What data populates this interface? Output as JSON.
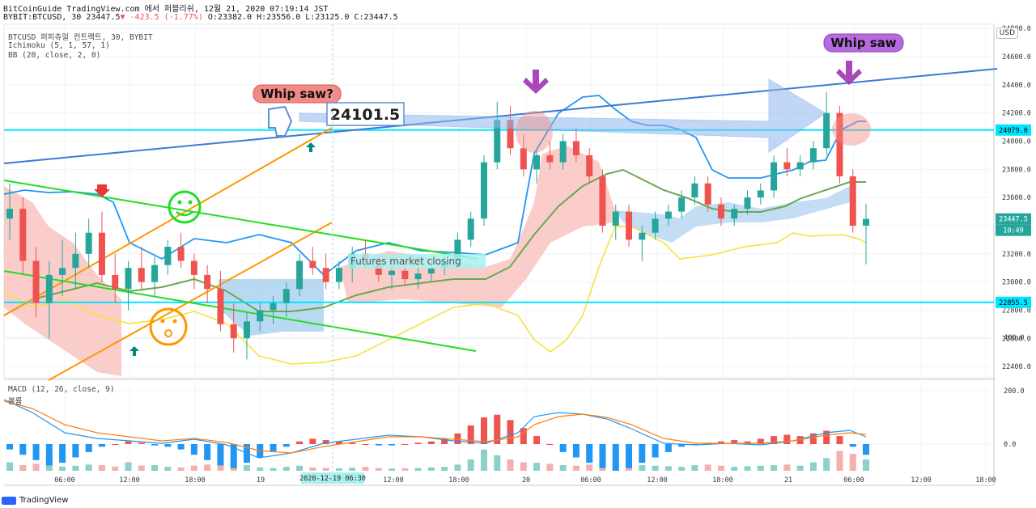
{
  "header": {
    "line1": "BitCoinGuide TradingView.com 에서 퍼블리쉬, 12월 21, 2020 07:19:14 JST",
    "line2_prefix": "BYBIT:BTCUSD, 30 23447.5",
    "change": "▼ -423.5 (-1.77%)",
    "ohlc": " O:23382.0 H:23556.0 L:23125.0 C:23447.5"
  },
  "indicators": {
    "symbol": "BTCUSD 퍼피츄얼 컨트랙트, 30, BYBIT",
    "ichimoku": "Ichimoku (5, 1, 57, 1)",
    "bb": "BB (20, close, 2, 0)",
    "macd": "MACD (12, 26, close, 9)",
    "volume": "볼륨"
  },
  "currency_button": "USD",
  "footer": {
    "brand": "TradingView"
  },
  "colors": {
    "up": "#26a69a",
    "down": "#ef5350",
    "bb_outer": "#2196f3",
    "bb_lower": "#ffeb3b",
    "basis": "#6aa84f",
    "kumo_green": "#a8cfef",
    "kumo_red": "#f8b8b4",
    "cyan_line": "#00e5ff",
    "trend_blue": "#3d7ad6",
    "orange_channel": "#ff9800",
    "green_trend": "#22dd22",
    "purple": "#b66ae0",
    "salmon": "#f28b86"
  },
  "chart_data": {
    "type": "candlestick",
    "symbol": "BTCUSD",
    "interval": "30",
    "x_tick_labels": [
      "06:00",
      "12:00",
      "18:00",
      "19",
      "12:00",
      "18:00",
      "20",
      "06:00",
      "12:00",
      "18:00",
      "21",
      "06:00",
      "12:00",
      "18:00"
    ],
    "y_tick_labels": [
      "22400.0",
      "22600.0",
      "22800.0",
      "23000.0",
      "23200.0",
      "23400.0",
      "23600.0",
      "23800.0",
      "24000.0",
      "24200.0",
      "24400.0",
      "24600.0",
      "24800.0"
    ],
    "ylim": [
      22320,
      24830
    ],
    "price_tags": [
      "24079.0",
      "23447.5",
      "22855.5"
    ],
    "countdown": "10:49",
    "horizontal_levels": [
      24079.0,
      22855.5
    ],
    "crosshair_label": "2020-12-19  06:30",
    "macd_y_tick_labels": [
      "400.0",
      "200.0",
      "0.0"
    ],
    "annotations": {
      "whip_saw_question": "Whip saw?",
      "whip_saw": "Whip saw",
      "price_box": "24101.5",
      "futures_note": "Futures market closing"
    },
    "candles_approx": [
      [
        23450,
        23700,
        23300,
        23520
      ],
      [
        23520,
        23600,
        23050,
        23150
      ],
      [
        23150,
        23250,
        22750,
        22850
      ],
      [
        22850,
        23150,
        22600,
        23050
      ],
      [
        23050,
        23300,
        22900,
        23100
      ],
      [
        23100,
        23350,
        22950,
        23200
      ],
      [
        23200,
        23450,
        23100,
        23350
      ],
      [
        23350,
        23500,
        23000,
        23050
      ],
      [
        23050,
        23200,
        22850,
        22950
      ],
      [
        22950,
        23150,
        22800,
        23100
      ],
      [
        23100,
        23250,
        22950,
        23000
      ],
      [
        23000,
        23180,
        22900,
        23120
      ],
      [
        23120,
        23300,
        23050,
        23250
      ],
      [
        23250,
        23350,
        23100,
        23150
      ],
      [
        23150,
        23200,
        22950,
        23050
      ],
      [
        23050,
        23120,
        22850,
        22950
      ],
      [
        22950,
        23080,
        22650,
        22700
      ],
      [
        22700,
        22850,
        22500,
        22600
      ],
      [
        22600,
        22780,
        22450,
        22720
      ],
      [
        22720,
        22850,
        22650,
        22800
      ],
      [
        22800,
        22900,
        22700,
        22850
      ],
      [
        22850,
        23000,
        22750,
        22950
      ],
      [
        22950,
        23200,
        22900,
        23150
      ],
      [
        23150,
        23250,
        23050,
        23100
      ],
      [
        23100,
        23200,
        22950,
        23000
      ],
      [
        23000,
        23150,
        22950,
        23100
      ],
      [
        23100,
        23250,
        23000,
        23200
      ],
      [
        23200,
        23300,
        23100,
        23150
      ],
      [
        23150,
        23200,
        23000,
        23050
      ],
      [
        23050,
        23150,
        22950,
        23080
      ],
      [
        23080,
        23150,
        22980,
        23020
      ],
      [
        23020,
        23100,
        22950,
        23060
      ],
      [
        23060,
        23150,
        23000,
        23100
      ],
      [
        23100,
        23200,
        23050,
        23150
      ],
      [
        23150,
        23350,
        23100,
        23300
      ],
      [
        23300,
        23500,
        23250,
        23450
      ],
      [
        23450,
        23900,
        23400,
        23850
      ],
      [
        23850,
        24280,
        23800,
        24150
      ],
      [
        24150,
        24250,
        23900,
        23950
      ],
      [
        23950,
        24050,
        23750,
        23800
      ],
      [
        23800,
        23950,
        23700,
        23900
      ],
      [
        23900,
        24000,
        23800,
        23850
      ],
      [
        23850,
        24050,
        23800,
        24000
      ],
      [
        24000,
        24100,
        23850,
        23900
      ],
      [
        23900,
        23950,
        23700,
        23750
      ],
      [
        23750,
        23800,
        23350,
        23400
      ],
      [
        23400,
        23550,
        23300,
        23500
      ],
      [
        23500,
        23550,
        23250,
        23300
      ],
      [
        23300,
        23400,
        23150,
        23350
      ],
      [
        23350,
        23500,
        23300,
        23450
      ],
      [
        23450,
        23550,
        23400,
        23500
      ],
      [
        23500,
        23650,
        23450,
        23600
      ],
      [
        23600,
        23750,
        23550,
        23700
      ],
      [
        23700,
        23750,
        23500,
        23550
      ],
      [
        23550,
        23600,
        23400,
        23450
      ],
      [
        23450,
        23550,
        23400,
        23520
      ],
      [
        23520,
        23650,
        23480,
        23600
      ],
      [
        23600,
        23700,
        23550,
        23650
      ],
      [
        23650,
        23900,
        23600,
        23850
      ],
      [
        23850,
        23950,
        23750,
        23800
      ],
      [
        23800,
        23900,
        23750,
        23850
      ],
      [
        23850,
        24000,
        23800,
        23950
      ],
      [
        23950,
        24350,
        23900,
        24200
      ],
      [
        24200,
        24250,
        23700,
        23750
      ],
      [
        23750,
        23800,
        23350,
        23400
      ],
      [
        23400,
        23556,
        23125,
        23447.5
      ]
    ],
    "macd_histogram_approx": [
      -20,
      -40,
      -60,
      -80,
      -70,
      -50,
      -30,
      -10,
      0,
      10,
      5,
      -5,
      -10,
      -20,
      -40,
      -60,
      -80,
      -90,
      -70,
      -50,
      -30,
      -10,
      10,
      20,
      15,
      10,
      5,
      0,
      -5,
      -5,
      0,
      5,
      10,
      20,
      40,
      70,
      100,
      110,
      90,
      60,
      30,
      0,
      -30,
      -50,
      -70,
      -90,
      -100,
      -90,
      -70,
      -50,
      -30,
      -10,
      0,
      5,
      10,
      15,
      10,
      20,
      30,
      35,
      30,
      40,
      50,
      30,
      -10,
      -40
    ],
    "volume_approx": [
      30,
      20,
      25,
      40,
      15,
      18,
      22,
      20,
      15,
      30,
      18,
      20,
      14,
      12,
      18,
      22,
      35,
      28,
      20,
      12,
      10,
      14,
      18,
      12,
      10,
      9,
      11,
      14,
      10,
      8,
      9,
      10,
      12,
      14,
      22,
      40,
      75,
      55,
      40,
      30,
      28,
      25,
      20,
      18,
      22,
      45,
      30,
      24,
      20,
      18,
      16,
      14,
      20,
      22,
      18,
      14,
      16,
      18,
      20,
      22,
      18,
      30,
      45,
      70,
      60,
      40
    ]
  }
}
